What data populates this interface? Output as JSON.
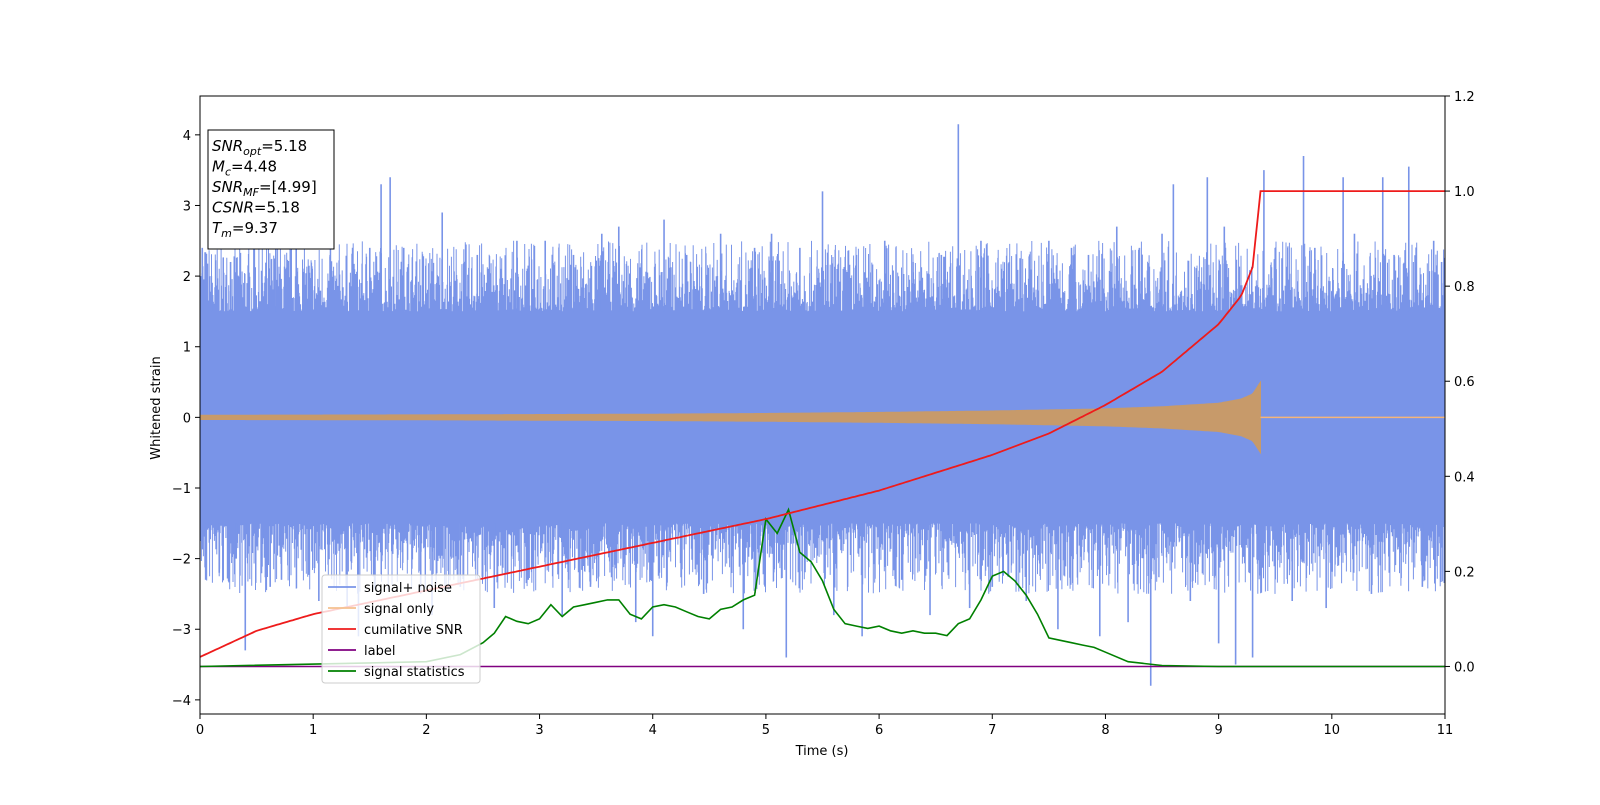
{
  "chart_data": {
    "type": "line",
    "title": "",
    "xlabel": "Time (s)",
    "ylabel": "Whitened strain",
    "y2label": "",
    "xlim": [
      0,
      11
    ],
    "ylim": [
      -4.2,
      4.55
    ],
    "y2lim": [
      -0.1,
      1.2
    ],
    "x_ticks": [
      0,
      1,
      2,
      3,
      4,
      5,
      6,
      7,
      8,
      9,
      10,
      11
    ],
    "y_ticks": [
      -4,
      -3,
      -2,
      -1,
      0,
      1,
      2,
      3,
      4
    ],
    "y_tick_labels": [
      "−4",
      "−3",
      "−2",
      "−1",
      "0",
      "1",
      "2",
      "3",
      "4"
    ],
    "y2_ticks": [
      0.0,
      0.2,
      0.4,
      0.6,
      0.8,
      1.0,
      1.2
    ],
    "y2_tick_labels": [
      "0.0",
      "0.2",
      "0.4",
      "0.6",
      "0.8",
      "1.0",
      "1.2"
    ],
    "grid": false,
    "legend_position": "lower-left",
    "annotation": {
      "lines": [
        {
          "base": "SNR",
          "sub": "opt",
          "value": "=5.18"
        },
        {
          "base": "M",
          "sub": "c",
          "value": "=4.48"
        },
        {
          "base": "SNR",
          "sub": "MF",
          "value": "=[4.99]"
        },
        {
          "base": "CSNR",
          "sub": "",
          "value": "=5.18"
        },
        {
          "base": "T",
          "sub": "m",
          "value": "=9.37"
        }
      ]
    },
    "series": [
      {
        "name": "signal+ noise",
        "axis": "left",
        "color": "#7994e8",
        "style": "noise band",
        "band_upper": 1.5,
        "band_lower": -1.5,
        "spikes": [
          [
            0.02,
            2.4
          ],
          [
            0.05,
            -2.3
          ],
          [
            0.1,
            2.0
          ],
          [
            0.17,
            -2.2
          ],
          [
            0.27,
            2.2
          ],
          [
            0.32,
            -2.0
          ],
          [
            0.4,
            -3.3
          ],
          [
            0.48,
            2.4
          ],
          [
            0.62,
            -2.4
          ],
          [
            0.67,
            2.6
          ],
          [
            0.72,
            -2.3
          ],
          [
            0.85,
            2.4
          ],
          [
            1.05,
            -2.6
          ],
          [
            1.15,
            2.3
          ],
          [
            1.3,
            -2.7
          ],
          [
            1.4,
            -3.1
          ],
          [
            1.5,
            2.4
          ],
          [
            1.6,
            3.3
          ],
          [
            1.68,
            3.4
          ],
          [
            1.8,
            2.4
          ],
          [
            1.95,
            -2.5
          ],
          [
            2.05,
            -2.8
          ],
          [
            2.14,
            2.9
          ],
          [
            2.3,
            -2.4
          ],
          [
            2.45,
            2.3
          ],
          [
            2.6,
            -2.7
          ],
          [
            2.8,
            2.5
          ],
          [
            2.9,
            -2.3
          ],
          [
            3.05,
            2.5
          ],
          [
            3.2,
            -2.8
          ],
          [
            3.3,
            2.3
          ],
          [
            3.45,
            -2.4
          ],
          [
            3.55,
            2.6
          ],
          [
            3.7,
            2.7
          ],
          [
            3.85,
            -2.9
          ],
          [
            4.0,
            -3.1
          ],
          [
            4.1,
            2.8
          ],
          [
            4.3,
            2.3
          ],
          [
            4.45,
            -2.5
          ],
          [
            4.6,
            2.6
          ],
          [
            4.8,
            -3.0
          ],
          [
            4.9,
            2.4
          ],
          [
            5.05,
            2.6
          ],
          [
            5.18,
            -3.4
          ],
          [
            5.3,
            2.4
          ],
          [
            5.5,
            3.2
          ],
          [
            5.6,
            -2.8
          ],
          [
            5.8,
            2.3
          ],
          [
            5.85,
            -3.1
          ],
          [
            6.05,
            2.5
          ],
          [
            6.2,
            -2.3
          ],
          [
            6.3,
            2.2
          ],
          [
            6.45,
            -2.8
          ],
          [
            6.55,
            2.3
          ],
          [
            6.7,
            4.15
          ],
          [
            6.8,
            -2.7
          ],
          [
            6.9,
            2.5
          ],
          [
            7.0,
            -2.4
          ],
          [
            7.15,
            2.2
          ],
          [
            7.3,
            -2.6
          ],
          [
            7.5,
            2.5
          ],
          [
            7.58,
            -3.0
          ],
          [
            7.7,
            2.4
          ],
          [
            7.85,
            2.3
          ],
          [
            7.95,
            -3.1
          ],
          [
            8.1,
            2.7
          ],
          [
            8.2,
            -2.9
          ],
          [
            8.3,
            2.4
          ],
          [
            8.4,
            -3.8
          ],
          [
            8.5,
            2.6
          ],
          [
            8.6,
            3.3
          ],
          [
            8.75,
            -2.6
          ],
          [
            8.9,
            3.4
          ],
          [
            9.0,
            -3.2
          ],
          [
            9.05,
            2.7
          ],
          [
            9.15,
            -3.5
          ],
          [
            9.3,
            -3.4
          ],
          [
            9.4,
            3.5
          ],
          [
            9.5,
            2.4
          ],
          [
            9.65,
            -2.6
          ],
          [
            9.75,
            3.7
          ],
          [
            9.85,
            2.4
          ],
          [
            9.95,
            -2.7
          ],
          [
            10.1,
            3.4
          ],
          [
            10.2,
            2.6
          ],
          [
            10.35,
            -2.5
          ],
          [
            10.45,
            3.4
          ],
          [
            10.55,
            2.3
          ],
          [
            10.68,
            3.55
          ],
          [
            10.8,
            -2.4
          ],
          [
            10.9,
            2.5
          ],
          [
            10.97,
            2.2
          ]
        ]
      },
      {
        "name": "signal only",
        "axis": "left",
        "color": "#c79a6a",
        "style": "chirp envelope",
        "x": [
          0,
          2,
          4,
          5,
          6,
          7,
          8,
          8.5,
          9.0,
          9.2,
          9.3,
          9.37,
          11
        ],
        "amplitude": [
          0.03,
          0.035,
          0.045,
          0.055,
          0.07,
          0.09,
          0.12,
          0.15,
          0.2,
          0.26,
          0.33,
          0.5,
          0.0
        ]
      },
      {
        "name": "cumilative SNR",
        "axis": "right",
        "color": "#ee1b1b",
        "x": [
          0,
          0.5,
          1,
          2,
          3,
          4,
          5,
          6,
          7,
          7.5,
          8,
          8.5,
          9.0,
          9.2,
          9.3,
          9.37,
          11
        ],
        "y": [
          0.02,
          0.075,
          0.11,
          0.16,
          0.21,
          0.26,
          0.31,
          0.37,
          0.445,
          0.49,
          0.55,
          0.62,
          0.72,
          0.78,
          0.84,
          1.0,
          1.0
        ]
      },
      {
        "name": "label",
        "axis": "right",
        "color": "#800080",
        "x": [
          0,
          11
        ],
        "y": [
          0.0,
          0.0
        ]
      },
      {
        "name": "signal statistics",
        "axis": "right",
        "color": "#008000",
        "x": [
          0,
          2.0,
          2.3,
          2.5,
          2.6,
          2.7,
          2.8,
          2.9,
          3.0,
          3.1,
          3.2,
          3.3,
          3.4,
          3.5,
          3.6,
          3.7,
          3.8,
          3.9,
          4.0,
          4.1,
          4.2,
          4.3,
          4.4,
          4.5,
          4.6,
          4.7,
          4.8,
          4.9,
          5.0,
          5.1,
          5.2,
          5.3,
          5.4,
          5.5,
          5.6,
          5.7,
          5.8,
          5.9,
          6.0,
          6.1,
          6.2,
          6.3,
          6.4,
          6.5,
          6.6,
          6.7,
          6.8,
          6.9,
          7.0,
          7.1,
          7.2,
          7.3,
          7.4,
          7.5,
          7.6,
          7.7,
          7.8,
          7.9,
          8.0,
          8.2,
          8.5,
          9.0,
          11
        ],
        "y": [
          0.0,
          0.01,
          0.025,
          0.05,
          0.07,
          0.105,
          0.095,
          0.09,
          0.1,
          0.13,
          0.105,
          0.125,
          0.13,
          0.135,
          0.14,
          0.14,
          0.11,
          0.1,
          0.125,
          0.13,
          0.125,
          0.115,
          0.105,
          0.1,
          0.12,
          0.125,
          0.14,
          0.15,
          0.31,
          0.28,
          0.33,
          0.24,
          0.22,
          0.18,
          0.12,
          0.09,
          0.085,
          0.08,
          0.085,
          0.075,
          0.07,
          0.075,
          0.07,
          0.07,
          0.065,
          0.09,
          0.1,
          0.14,
          0.19,
          0.2,
          0.18,
          0.15,
          0.11,
          0.06,
          0.055,
          0.05,
          0.045,
          0.04,
          0.03,
          0.01,
          0.002,
          0.0,
          0.0
        ]
      }
    ]
  }
}
